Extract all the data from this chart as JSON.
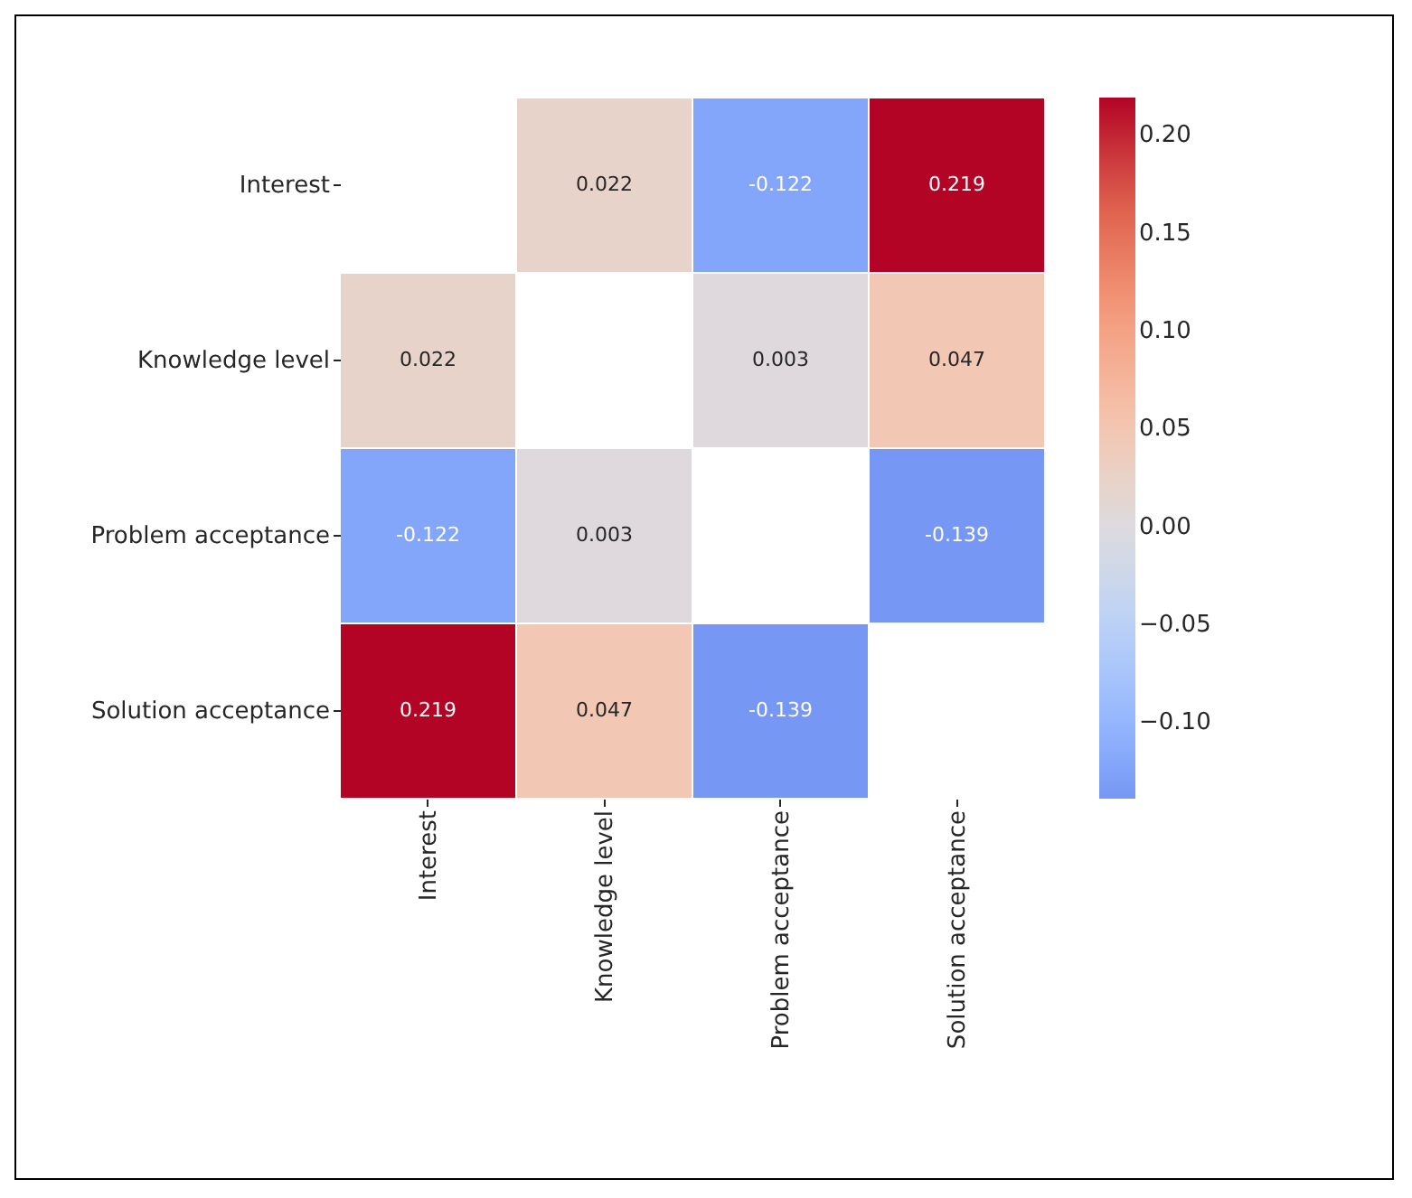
{
  "chart_data": {
    "type": "heatmap",
    "categories": [
      "Interest",
      "Knowledge level",
      "Problem acceptance",
      "Solution acceptance"
    ],
    "y_categories": [
      "Interest",
      "Knowledge level",
      "Problem acceptance",
      "Solution acceptance"
    ],
    "cells": [
      [
        null,
        0.022,
        -0.122,
        0.219
      ],
      [
        0.022,
        null,
        0.003,
        0.047
      ],
      [
        -0.122,
        0.003,
        null,
        -0.139
      ],
      [
        0.219,
        0.047,
        -0.139,
        null
      ]
    ],
    "data_labels": true,
    "clim": [
      -0.139,
      0.219
    ],
    "cticks": [
      {
        "value": -0.1,
        "label": "−0.10"
      },
      {
        "value": -0.05,
        "label": "−0.05"
      },
      {
        "value": 0,
        "label": "0.00"
      },
      {
        "value": 0.05,
        "label": "0.05"
      },
      {
        "value": 0.1,
        "label": "0.10"
      },
      {
        "value": 0.15,
        "label": "0.15"
      },
      {
        "value": 0.2,
        "label": "0.20"
      }
    ]
  }
}
